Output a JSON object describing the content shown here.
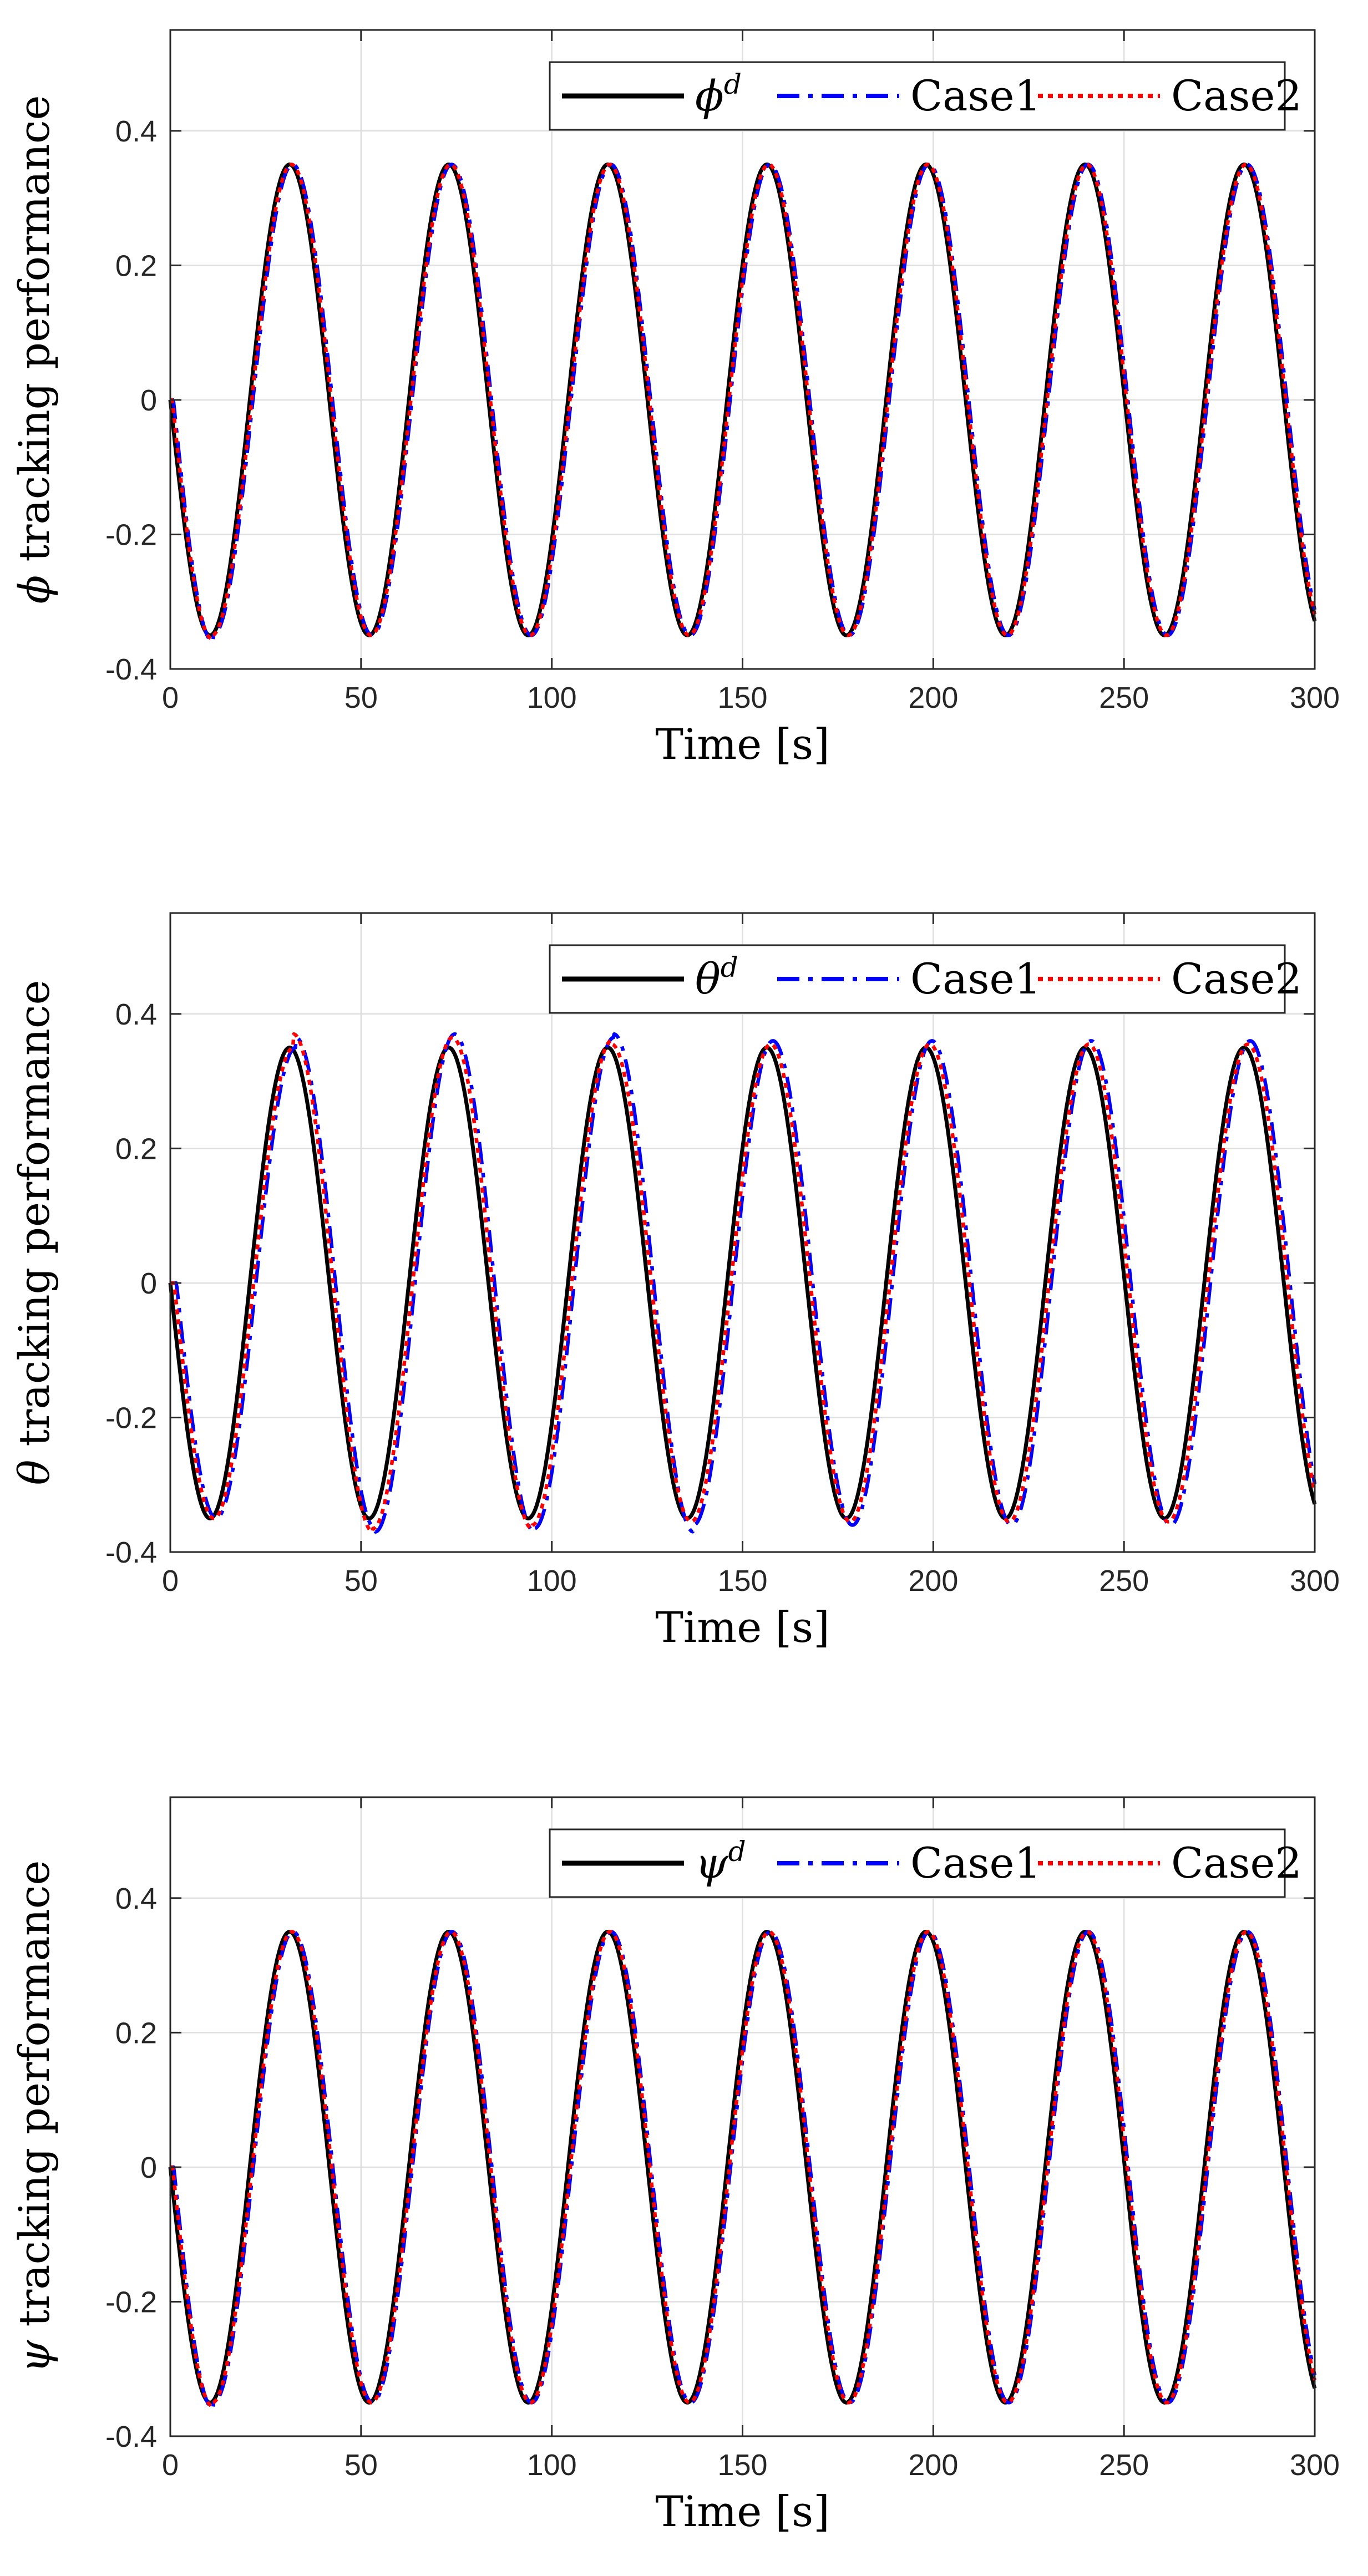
{
  "chart_data": [
    {
      "type": "line",
      "title": "",
      "xlabel": "Time [s]",
      "ylabel_symbol": "ϕ",
      "ylabel_rest": " tracking performance",
      "xlim": [
        0,
        300
      ],
      "ylim": [
        -0.4,
        0.55
      ],
      "xticks": [
        0,
        50,
        100,
        150,
        200,
        250,
        300
      ],
      "yticks": [
        -0.4,
        -0.2,
        0,
        0.2,
        0.4
      ],
      "x_tick_labels": [
        "0",
        "50",
        "100",
        "150",
        "200",
        "250",
        "300"
      ],
      "y_tick_labels": [
        "-0.4",
        "-0.2",
        "0",
        "0.2",
        "0.4"
      ],
      "grid": true,
      "legend_position": "top-right",
      "legend": [
        {
          "symbol": "ϕ",
          "sup": "d",
          "text": ""
        },
        {
          "symbol": "",
          "sup": "",
          "text": "Case1"
        },
        {
          "symbol": "",
          "sup": "",
          "text": "Case2"
        }
      ],
      "series": [
        {
          "name": "ϕ^d",
          "color": "#000000",
          "style": "solid",
          "amplitude": 0.35,
          "period": 41.7,
          "phase_delay": 0.0,
          "overshoot": [
            0,
            0,
            0,
            0,
            0,
            0,
            0,
            0
          ]
        },
        {
          "name": "Case1",
          "color": "#0000ff",
          "style": "dashdot",
          "amplitude": 0.35,
          "period": 41.7,
          "phase_delay": 0.8,
          "overshoot": [
            0.01,
            0,
            0,
            0,
            0,
            0,
            0,
            0
          ]
        },
        {
          "name": "Case2",
          "color": "#ff0000",
          "style": "dotted",
          "amplitude": 0.35,
          "period": 41.7,
          "phase_delay": 0.5,
          "overshoot": [
            0.005,
            0,
            0,
            0,
            0,
            0,
            0,
            0
          ]
        }
      ]
    },
    {
      "type": "line",
      "title": "",
      "xlabel": "Time [s]",
      "ylabel_symbol": "θ",
      "ylabel_rest": " tracking performance",
      "xlim": [
        0,
        300
      ],
      "ylim": [
        -0.4,
        0.55
      ],
      "xticks": [
        0,
        50,
        100,
        150,
        200,
        250,
        300
      ],
      "yticks": [
        -0.4,
        -0.2,
        0,
        0.2,
        0.4
      ],
      "x_tick_labels": [
        "0",
        "50",
        "100",
        "150",
        "200",
        "250",
        "300"
      ],
      "y_tick_labels": [
        "-0.4",
        "-0.2",
        "0",
        "0.2",
        "0.4"
      ],
      "grid": true,
      "legend_position": "top-right",
      "legend": [
        {
          "symbol": "θ",
          "sup": "d",
          "text": ""
        },
        {
          "symbol": "",
          "sup": "",
          "text": "Case1"
        },
        {
          "symbol": "",
          "sup": "",
          "text": "Case2"
        }
      ],
      "series": [
        {
          "name": "θ^d",
          "color": "#000000",
          "style": "solid",
          "amplitude": 0.35,
          "period": 41.7,
          "phase_delay": 0.0,
          "overshoot": [
            0,
            0,
            0,
            0,
            0,
            0,
            0,
            0
          ]
        },
        {
          "name": "Case1",
          "color": "#0000ff",
          "style": "dashdot",
          "amplitude": 0.35,
          "period": 41.7,
          "phase_delay": 1.6,
          "overshoot": [
            0,
            0,
            0.015,
            0.02,
            0.02,
            0.015,
            0.02,
            0.01
          ]
        },
        {
          "name": "Case2",
          "color": "#ff0000",
          "style": "dotted",
          "amplitude": 0.35,
          "period": 41.7,
          "phase_delay": 1.0,
          "overshoot": [
            0,
            0,
            0.02,
            0.015,
            0.015,
            0.01,
            0.005,
            0.005
          ]
        }
      ]
    },
    {
      "type": "line",
      "title": "",
      "xlabel": "Time [s]",
      "ylabel_symbol": "ψ",
      "ylabel_rest": " tracking performance",
      "xlim": [
        0,
        300
      ],
      "ylim": [
        -0.4,
        0.55
      ],
      "xticks": [
        0,
        50,
        100,
        150,
        200,
        250,
        300
      ],
      "yticks": [
        -0.4,
        -0.2,
        0,
        0.2,
        0.4
      ],
      "x_tick_labels": [
        "0",
        "50",
        "100",
        "150",
        "200",
        "250",
        "300"
      ],
      "y_tick_labels": [
        "-0.4",
        "-0.2",
        "0",
        "0.2",
        "0.4"
      ],
      "grid": true,
      "legend_position": "top-right",
      "legend": [
        {
          "symbol": "ψ",
          "sup": "d",
          "text": ""
        },
        {
          "symbol": "",
          "sup": "",
          "text": "Case1"
        },
        {
          "symbol": "",
          "sup": "",
          "text": "Case2"
        }
      ],
      "series": [
        {
          "name": "ψ^d",
          "color": "#000000",
          "style": "solid",
          "amplitude": 0.35,
          "period": 41.7,
          "phase_delay": 0.0,
          "overshoot": [
            0,
            0,
            0,
            0,
            0,
            0,
            0,
            0
          ]
        },
        {
          "name": "Case1",
          "color": "#0000ff",
          "style": "dashdot",
          "amplitude": 0.35,
          "period": 41.7,
          "phase_delay": 0.9,
          "overshoot": [
            0.01,
            0,
            0,
            0,
            0,
            0,
            0,
            0
          ]
        },
        {
          "name": "Case2",
          "color": "#ff0000",
          "style": "dotted",
          "amplitude": 0.35,
          "period": 41.7,
          "phase_delay": 0.6,
          "overshoot": [
            0.005,
            0,
            0,
            0,
            0,
            0,
            0,
            0
          ]
        }
      ]
    }
  ]
}
